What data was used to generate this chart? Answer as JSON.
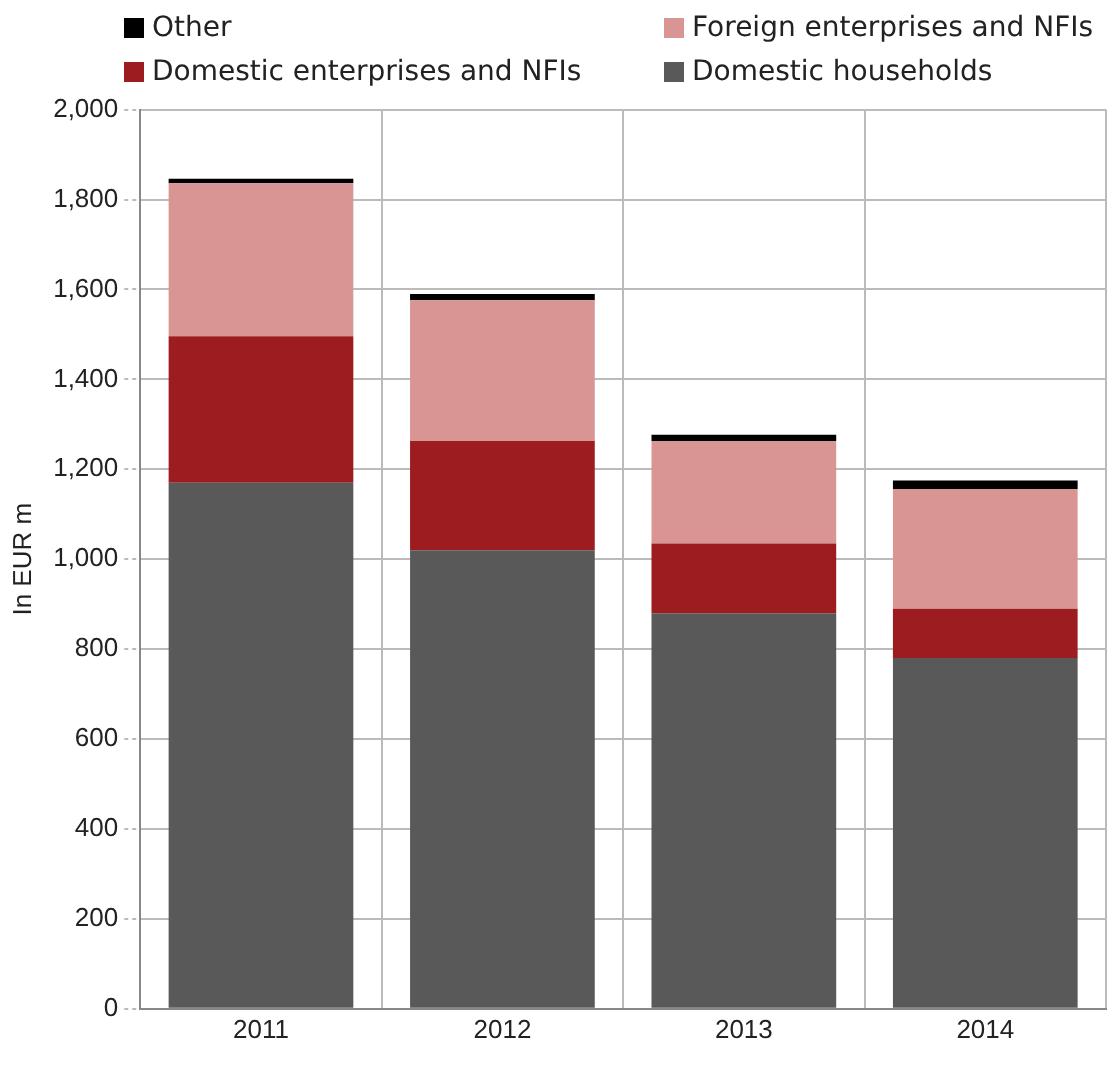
{
  "chart_data": {
    "type": "bar",
    "stacked": true,
    "ylabel": "In EUR m",
    "categories": [
      "2011",
      "2012",
      "2013",
      "2014"
    ],
    "series": [
      {
        "name": "Domestic households",
        "color": "#595959",
        "values": [
          1170,
          1020,
          880,
          780
        ]
      },
      {
        "name": "Domestic enterprises and NFIs",
        "color": "#9c1c20",
        "values": [
          326,
          243,
          155,
          110
        ]
      },
      {
        "name": "Foreign enterprises and NFIs",
        "color": "#d99594",
        "values": [
          340,
          313,
          228,
          266
        ]
      },
      {
        "name": "Other",
        "color": "#000000",
        "values": [
          10,
          14,
          14,
          19
        ]
      }
    ],
    "ylim": [
      0,
      2000
    ],
    "yticks": [
      0,
      200,
      400,
      600,
      800,
      {
        "value": 1000,
        "label": "1,000"
      },
      {
        "value": 1200,
        "label": "1,200"
      },
      {
        "value": 1400,
        "label": "1,400"
      },
      {
        "value": 1600,
        "label": "1,600"
      },
      {
        "value": 1800,
        "label": "1,800"
      },
      {
        "value": 2000,
        "label": "2,000"
      }
    ],
    "grid": true,
    "line_style": "dotted",
    "legend": "top"
  }
}
